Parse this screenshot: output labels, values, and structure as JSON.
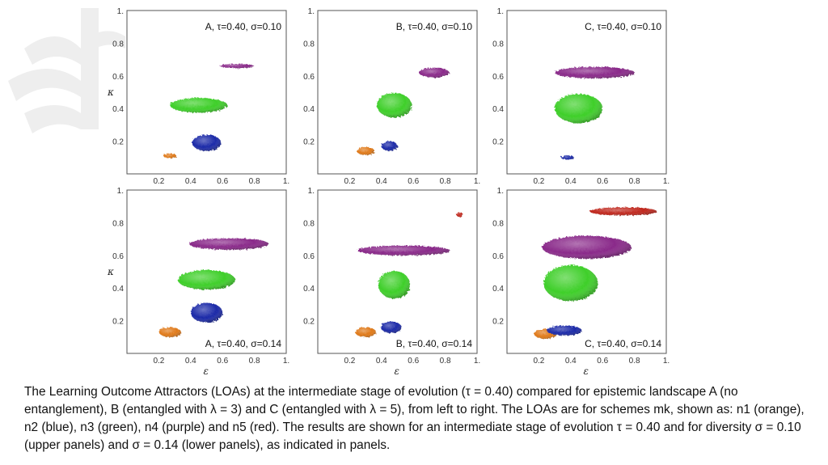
{
  "caption": "The Learning Outcome Attractors (LOAs) at the intermediate stage of evolution (τ = 0.40) compared for epistemic landscape A (no entanglement), B (entangled with λ = 3) and C (entangled with λ = 5), from left to right. The LOAs are for schemes mk, shown as: n1 (orange), n2 (blue), n3 (green), n4 (purple) and n5 (red). The results are shown for an intermediate stage of evolution τ = 0.40 and for diversity σ = 0.10 (upper panels) and σ = 0.14 (lower panels), as indicated in panels.",
  "axes": {
    "x_symbol": "ε",
    "y_symbol": "κ",
    "x_ticks": [
      "0.2",
      "0.4",
      "0.6",
      "0.8",
      "1."
    ],
    "y_ticks": [
      "0.2",
      "0.4",
      "0.6",
      "0.8",
      "1."
    ]
  },
  "colors": {
    "n1": "#e07a1a",
    "n2": "#1c2aa8",
    "n3": "#3fcf2a",
    "n4": "#8a2a8a",
    "n5": "#c0281e"
  },
  "panels": [
    {
      "label": "A, τ=0.40, σ=0.10",
      "row": 0,
      "col": 0,
      "label_pos": "top",
      "blobs": [
        {
          "scheme": "n1",
          "eps": 0.27,
          "kap": 0.11,
          "w": 0.08,
          "h": 0.03
        },
        {
          "scheme": "n2",
          "eps": 0.5,
          "kap": 0.19,
          "w": 0.18,
          "h": 0.1
        },
        {
          "scheme": "n3",
          "eps": 0.45,
          "kap": 0.42,
          "w": 0.36,
          "h": 0.09
        },
        {
          "scheme": "n4",
          "eps": 0.69,
          "kap": 0.66,
          "w": 0.22,
          "h": 0.025
        }
      ]
    },
    {
      "label": "B, τ=0.40, σ=0.10",
      "row": 0,
      "col": 1,
      "label_pos": "top",
      "blobs": [
        {
          "scheme": "n1",
          "eps": 0.3,
          "kap": 0.14,
          "w": 0.11,
          "h": 0.05
        },
        {
          "scheme": "n2",
          "eps": 0.45,
          "kap": 0.17,
          "w": 0.1,
          "h": 0.06
        },
        {
          "scheme": "n3",
          "eps": 0.48,
          "kap": 0.42,
          "w": 0.22,
          "h": 0.15
        },
        {
          "scheme": "n4",
          "eps": 0.73,
          "kap": 0.62,
          "w": 0.19,
          "h": 0.06
        }
      ]
    },
    {
      "label": "C, τ=0.40, σ=0.10",
      "row": 0,
      "col": 2,
      "label_pos": "top",
      "blobs": [
        {
          "scheme": "n2",
          "eps": 0.38,
          "kap": 0.1,
          "w": 0.08,
          "h": 0.025
        },
        {
          "scheme": "n3",
          "eps": 0.45,
          "kap": 0.4,
          "w": 0.3,
          "h": 0.18
        },
        {
          "scheme": "n4",
          "eps": 0.55,
          "kap": 0.62,
          "w": 0.5,
          "h": 0.07
        }
      ]
    },
    {
      "label": "A, τ=0.40, σ=0.14",
      "row": 1,
      "col": 0,
      "label_pos": "bottom",
      "blobs": [
        {
          "scheme": "n1",
          "eps": 0.27,
          "kap": 0.13,
          "w": 0.14,
          "h": 0.06
        },
        {
          "scheme": "n2",
          "eps": 0.5,
          "kap": 0.25,
          "w": 0.2,
          "h": 0.12
        },
        {
          "scheme": "n3",
          "eps": 0.5,
          "kap": 0.45,
          "w": 0.36,
          "h": 0.12
        },
        {
          "scheme": "n4",
          "eps": 0.64,
          "kap": 0.67,
          "w": 0.5,
          "h": 0.07
        }
      ]
    },
    {
      "label": "B, τ=0.40, σ=0.14",
      "row": 1,
      "col": 1,
      "label_pos": "bottom",
      "blobs": [
        {
          "scheme": "n1",
          "eps": 0.3,
          "kap": 0.13,
          "w": 0.13,
          "h": 0.06
        },
        {
          "scheme": "n2",
          "eps": 0.46,
          "kap": 0.16,
          "w": 0.13,
          "h": 0.07
        },
        {
          "scheme": "n3",
          "eps": 0.48,
          "kap": 0.42,
          "w": 0.2,
          "h": 0.17
        },
        {
          "scheme": "n4",
          "eps": 0.54,
          "kap": 0.63,
          "w": 0.58,
          "h": 0.06
        },
        {
          "scheme": "n5",
          "eps": 0.89,
          "kap": 0.85,
          "w": 0.04,
          "h": 0.03
        }
      ]
    },
    {
      "label": "C, τ=0.40, σ=0.14",
      "row": 1,
      "col": 2,
      "label_pos": "bottom",
      "blobs": [
        {
          "scheme": "n1",
          "eps": 0.24,
          "kap": 0.12,
          "w": 0.14,
          "h": 0.06
        },
        {
          "scheme": "n2",
          "eps": 0.36,
          "kap": 0.14,
          "w": 0.22,
          "h": 0.06
        },
        {
          "scheme": "n3",
          "eps": 0.4,
          "kap": 0.43,
          "w": 0.34,
          "h": 0.22
        },
        {
          "scheme": "n4",
          "eps": 0.5,
          "kap": 0.65,
          "w": 0.56,
          "h": 0.14
        },
        {
          "scheme": "n5",
          "eps": 0.73,
          "kap": 0.87,
          "w": 0.42,
          "h": 0.05
        }
      ]
    }
  ]
}
